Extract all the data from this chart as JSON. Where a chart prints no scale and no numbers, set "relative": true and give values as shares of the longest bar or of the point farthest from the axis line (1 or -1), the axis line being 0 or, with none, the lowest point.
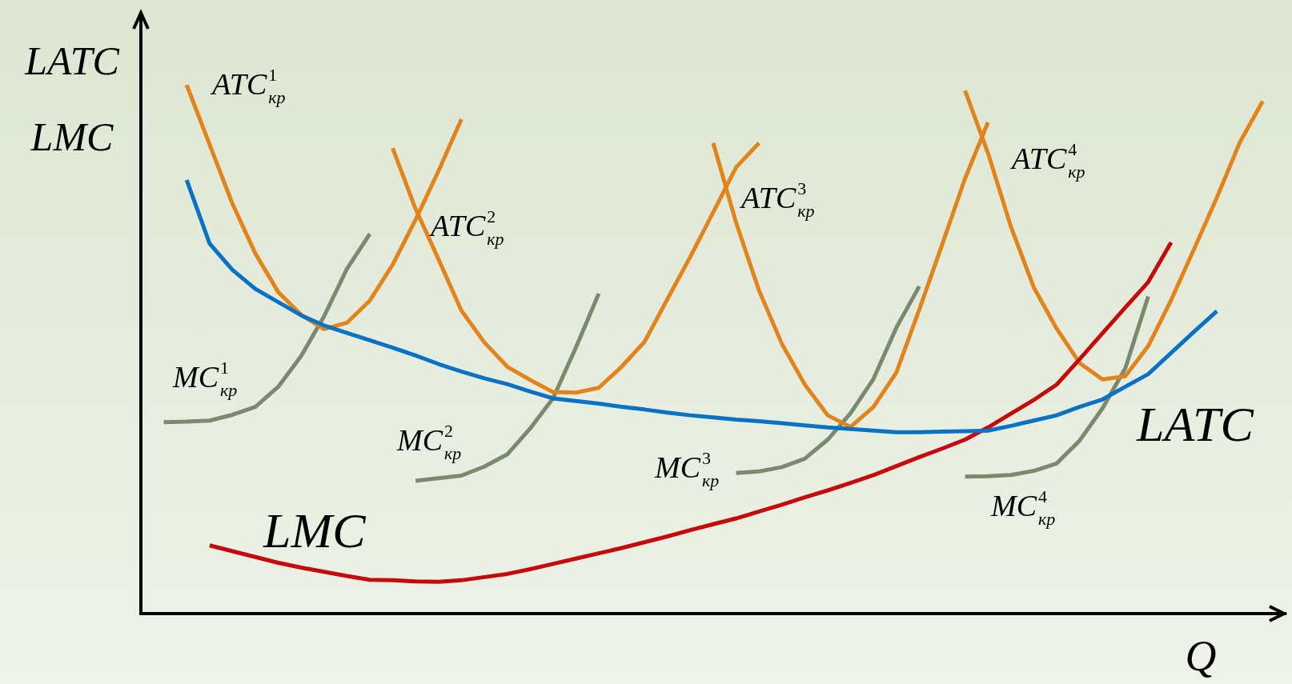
{
  "chart_data": {
    "type": "line",
    "relative": true,
    "xlabel": "Q",
    "ylabel": "LATC\nLMC",
    "legend": false,
    "grid": false,
    "tick_labels": false,
    "marker": "none",
    "line_style": "solid",
    "categories": [
      null,
      null,
      null,
      null,
      null,
      null,
      null,
      null,
      null,
      null,
      null,
      null,
      null,
      null,
      null,
      null,
      null,
      null,
      null,
      null,
      null,
      null,
      null,
      null,
      null,
      null,
      null,
      null,
      null,
      null,
      null,
      null,
      null,
      null,
      null,
      null,
      null,
      null,
      null,
      null,
      null,
      null,
      null,
      null,
      null,
      null,
      null,
      null,
      null,
      null,
      null
    ],
    "series": [
      {
        "name": "LATC",
        "color": "#0a72c4",
        "values": [
          null,
          null,
          0.82,
          0.7,
          0.65,
          0.614,
          0.589,
          0.564,
          0.545,
          0.531,
          0.517,
          0.503,
          0.488,
          0.472,
          0.458,
          0.445,
          0.434,
          0.42,
          0.407,
          0.402,
          0.397,
          0.391,
          0.386,
          0.38,
          0.375,
          0.371,
          0.367,
          0.364,
          0.36,
          0.356,
          0.352,
          0.349,
          0.346,
          0.343,
          0.343,
          0.344,
          0.345,
          0.346,
          0.355,
          0.365,
          0.375,
          0.391,
          0.405,
          0.429,
          0.453,
          0.493,
          0.533,
          0.572,
          null,
          null,
          null
        ]
      },
      {
        "name": "LMC",
        "color": "#c40a0a",
        "values": [
          null,
          null,
          null,
          0.129,
          0.118,
          0.107,
          0.096,
          0.087,
          0.079,
          0.071,
          0.064,
          0.063,
          0.061,
          0.06,
          0.063,
          0.069,
          0.075,
          0.084,
          0.094,
          0.104,
          0.114,
          0.124,
          0.135,
          0.146,
          0.158,
          0.169,
          0.18,
          0.193,
          0.206,
          0.22,
          0.233,
          0.247,
          0.262,
          0.279,
          0.296,
          0.312,
          0.329,
          0.352,
          0.378,
          0.404,
          0.433,
          0.481,
          0.53,
          0.579,
          0.627,
          0.702,
          null,
          null,
          null,
          null,
          null
        ]
      },
      {
        "name": "ATC$^{1}$$_{кр}$",
        "color": "#e2841c",
        "values": [
          null,
          null,
          1.0,
          0.887,
          0.775,
          0.681,
          0.608,
          0.565,
          0.538,
          0.55,
          0.592,
          0.66,
          0.745,
          0.837,
          0.935,
          null,
          null,
          null,
          null,
          null,
          null,
          null,
          null,
          null,
          null,
          null,
          null,
          null,
          null,
          null,
          null,
          null,
          null,
          null,
          null,
          null,
          null,
          null,
          null,
          null,
          null,
          null,
          null,
          null,
          null,
          null,
          null,
          null,
          null,
          null,
          null
        ]
      },
      {
        "name": "ATC$^{2}$$_{кр}$",
        "color": "#e2841c",
        "values": [
          null,
          null,
          null,
          null,
          null,
          null,
          null,
          null,
          null,
          null,
          null,
          0.88,
          0.765,
          0.67,
          0.573,
          0.513,
          0.467,
          0.442,
          0.419,
          0.418,
          0.427,
          0.467,
          0.514,
          0.595,
          0.675,
          0.759,
          0.844,
          0.89,
          null,
          null,
          null,
          null,
          null,
          null,
          null,
          null,
          null,
          null,
          null,
          null,
          null,
          null,
          null,
          null,
          null,
          null,
          null,
          null,
          null,
          null,
          null
        ]
      },
      {
        "name": "ATC$^{3}$$_{кр}$",
        "color": "#e2841c",
        "values": [
          null,
          null,
          null,
          null,
          null,
          null,
          null,
          null,
          null,
          null,
          null,
          null,
          null,
          null,
          null,
          null,
          null,
          null,
          null,
          null,
          null,
          null,
          null,
          null,
          null,
          0.89,
          0.739,
          0.611,
          0.51,
          0.433,
          0.375,
          0.353,
          0.391,
          0.456,
          0.575,
          0.698,
          0.823,
          0.929,
          null,
          null,
          null,
          null,
          null,
          null,
          null,
          null,
          null,
          null,
          null,
          null,
          null
        ]
      },
      {
        "name": "ATC$^{4}$$_{кр}$",
        "color": "#e2841c",
        "values": [
          null,
          null,
          null,
          null,
          null,
          null,
          null,
          null,
          null,
          null,
          null,
          null,
          null,
          null,
          null,
          null,
          null,
          null,
          null,
          null,
          null,
          null,
          null,
          null,
          null,
          null,
          null,
          null,
          null,
          null,
          null,
          null,
          null,
          null,
          null,
          null,
          0.989,
          0.871,
          0.732,
          0.617,
          0.539,
          0.474,
          0.443,
          0.449,
          0.506,
          0.593,
          0.689,
          0.787,
          0.891,
          0.969,
          null
        ]
      },
      {
        "name": "MC$^{1}$$_{кр}$",
        "color": "#7b8a6c",
        "values": [
          null,
          0.362,
          0.363,
          0.365,
          0.376,
          0.391,
          0.429,
          0.487,
          0.562,
          0.652,
          0.718,
          null,
          null,
          null,
          null,
          null,
          null,
          null,
          null,
          null,
          null,
          null,
          null,
          null,
          null,
          null,
          null,
          null,
          null,
          null,
          null,
          null,
          null,
          null,
          null,
          null,
          null,
          null,
          null,
          null,
          null,
          null,
          null,
          null,
          null,
          null,
          null,
          null,
          null,
          null,
          null
        ]
      },
      {
        "name": "MC$^{2}$$_{кр}$",
        "color": "#7b8a6c",
        "values": [
          null,
          null,
          null,
          null,
          null,
          null,
          null,
          null,
          null,
          null,
          null,
          null,
          0.251,
          0.256,
          0.261,
          0.278,
          0.301,
          0.35,
          0.407,
          0.503,
          0.605,
          null,
          null,
          null,
          null,
          null,
          null,
          null,
          null,
          null,
          null,
          null,
          null,
          null,
          null,
          null,
          null,
          null,
          null,
          null,
          null,
          null,
          null,
          null,
          null,
          null,
          null,
          null,
          null,
          null,
          null
        ]
      },
      {
        "name": "MC$^{3}$$_{кр}$",
        "color": "#7b8a6c",
        "values": [
          null,
          null,
          null,
          null,
          null,
          null,
          null,
          null,
          null,
          null,
          null,
          null,
          null,
          null,
          null,
          null,
          null,
          null,
          null,
          null,
          null,
          null,
          null,
          null,
          null,
          null,
          0.266,
          0.269,
          0.277,
          0.293,
          0.329,
          0.379,
          0.444,
          0.541,
          0.619,
          null,
          null,
          null,
          null,
          null,
          null,
          null,
          null,
          null,
          null,
          null,
          null,
          null,
          null,
          null,
          null
        ]
      },
      {
        "name": "MC$^{4}$$_{кр}$",
        "color": "#7b8a6c",
        "values": [
          null,
          null,
          null,
          null,
          null,
          null,
          null,
          null,
          null,
          null,
          null,
          null,
          null,
          null,
          null,
          null,
          null,
          null,
          null,
          null,
          null,
          null,
          null,
          null,
          null,
          null,
          null,
          null,
          null,
          null,
          null,
          null,
          null,
          null,
          null,
          null,
          0.259,
          0.26,
          0.262,
          0.27,
          0.284,
          0.327,
          0.388,
          0.464,
          0.6,
          null,
          null,
          null,
          null,
          null,
          null
        ]
      }
    ]
  }
}
